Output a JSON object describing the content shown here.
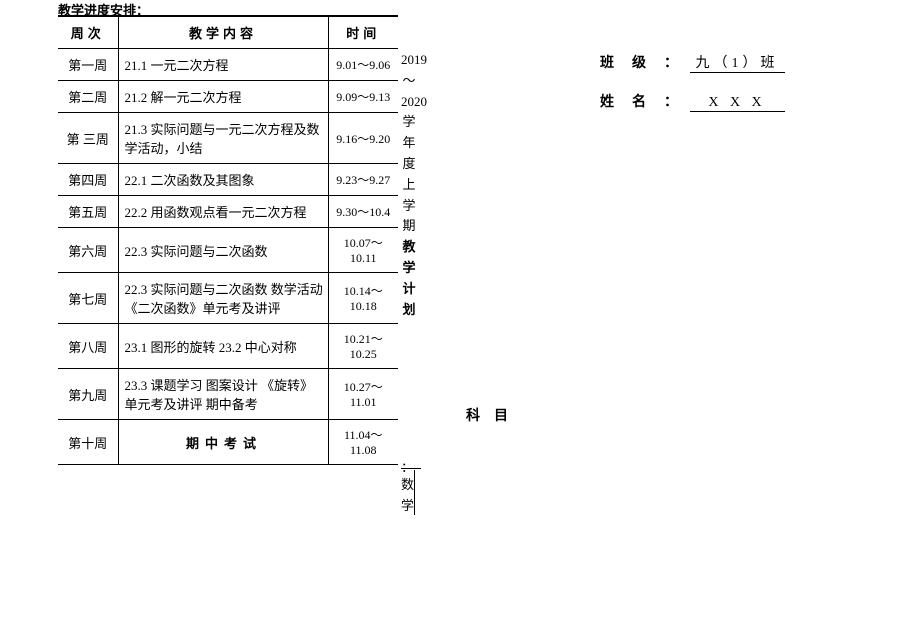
{
  "page_title": "教学进度安排：",
  "table": {
    "headers": [
      "周次",
      "教学内容",
      "时间"
    ],
    "rows": [
      {
        "week": "第一周",
        "content": "21.1 一元二次方程",
        "time": "9.01～9.06",
        "bold": false
      },
      {
        "week": "第二周",
        "content": "21.2 解一元二次方程",
        "time": "9.09～9.13",
        "bold": false
      },
      {
        "week": "第 三周",
        "content": "21.3 实际问题与一元二次方程及数学活动，小结",
        "time": "9.16～9.20",
        "bold": false
      },
      {
        "week": "第四周",
        "content": "22.1 二次函数及其图象",
        "time": "9.23～9.27",
        "bold": false
      },
      {
        "week": "第五周",
        "content": "22.2 用函数观点看一元二次方程",
        "time": "9.30～10.4",
        "bold": false
      },
      {
        "week": "第六周",
        "content": "22.3 实际问题与二次函数",
        "time": "10.07～10.11",
        "bold": false
      },
      {
        "week": "第七周",
        "content": "22.3  实际问题与二次函数 数学活动    《二次函数》单元考及讲评",
        "time": "10.14～10.18",
        "bold": false
      },
      {
        "week": "第八周",
        "content": "23.1 图形的旋转   23.2 中心对称",
        "time": "10.21～10.25",
        "bold": false
      },
      {
        "week": "第九周",
        "content": "23.3 课题学习   图案设计 《旋转》单元考及讲评  期中备考",
        "time": "10.27～11.01",
        "bold": false
      },
      {
        "week": "第十周",
        "content": "期中考试",
        "time": "11.04～11.08",
        "bold": true
      }
    ]
  },
  "vertical": {
    "year_text": "2019～2020学年度上学期",
    "plan_text": "教学计划"
  },
  "subject": {
    "label": "科目",
    "colon": "：",
    "value": "数学"
  },
  "info": {
    "class_label": "班级",
    "class_colon": "：",
    "class_value": "九（1）班",
    "name_label": "姓名",
    "name_colon": "：",
    "name_value": "X X X"
  }
}
